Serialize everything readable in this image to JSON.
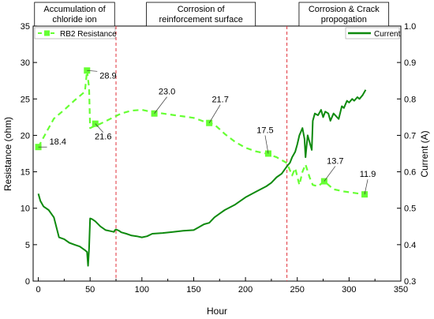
{
  "chart_data": {
    "type": "line",
    "title": "",
    "xlabel": "Hour",
    "ylabel_left": "Resistance (ohm)",
    "ylabel_right": "Current (A)",
    "xlim": [
      -5,
      350
    ],
    "ylim_left": [
      0,
      35
    ],
    "ylim_right": [
      0.3,
      1.0
    ],
    "x_ticks": [
      0,
      50,
      100,
      150,
      200,
      250,
      300,
      350
    ],
    "y_left_ticks": [
      0,
      5,
      10,
      15,
      20,
      25,
      30,
      35
    ],
    "y_right_ticks": [
      0.3,
      0.4,
      0.5,
      0.6,
      0.7,
      0.8,
      0.9,
      1.0
    ],
    "grid": false,
    "phase_boundaries": [
      75,
      240
    ],
    "phases": [
      {
        "label_lines": [
          "Accumulation of",
          "chloride ion"
        ],
        "x_center": 35
      },
      {
        "label_lines": [
          "Corrosion of",
          "reinforcement surface"
        ],
        "x_center": 157
      },
      {
        "label_lines": [
          "Corrosion & Crack",
          "propogation"
        ],
        "x_center": 295
      }
    ],
    "series": [
      {
        "name": "RB2 Resistance",
        "axis": "left",
        "color": "#66ff33",
        "style": "dashed",
        "marker": "square",
        "x": [
          0,
          8,
          15,
          25,
          35,
          45,
          47,
          49,
          50,
          53,
          60,
          70,
          80,
          90,
          100,
          110,
          120,
          130,
          140,
          150,
          160,
          170,
          180,
          190,
          200,
          210,
          220,
          230,
          240,
          245,
          248,
          252,
          255,
          258,
          262,
          265,
          270,
          276,
          285,
          295,
          305,
          315
        ],
        "y": [
          18.4,
          20.5,
          22.3,
          23.5,
          24.8,
          26.0,
          28.9,
          26.5,
          21.0,
          21.2,
          21.6,
          22.3,
          23.0,
          23.4,
          23.5,
          23.2,
          23.0,
          22.8,
          22.6,
          22.4,
          21.9,
          21.5,
          20.2,
          19.1,
          18.3,
          17.8,
          17.5,
          17.0,
          16.2,
          14.5,
          15.5,
          13.2,
          15.0,
          16.0,
          14.2,
          13.2,
          13.0,
          13.7,
          12.6,
          12.3,
          12.1,
          11.9
        ],
        "marker_points": [
          {
            "x": 0,
            "y": 18.4
          },
          {
            "x": 47,
            "y": 28.9
          },
          {
            "x": 55,
            "y": 21.6
          },
          {
            "x": 112,
            "y": 23.0
          },
          {
            "x": 165,
            "y": 21.7
          },
          {
            "x": 222,
            "y": 17.5
          },
          {
            "x": 276,
            "y": 13.7
          },
          {
            "x": 315,
            "y": 11.9
          }
        ],
        "data_labels": [
          {
            "text": "18.4",
            "x": 0,
            "y": 18.4
          },
          {
            "text": "28.9",
            "x": 47,
            "y": 28.9
          },
          {
            "text": "21.6",
            "x": 55,
            "y": 21.6
          },
          {
            "text": "23.0",
            "x": 112,
            "y": 23.0
          },
          {
            "text": "21.7",
            "x": 165,
            "y": 21.7
          },
          {
            "text": "17.5",
            "x": 222,
            "y": 17.5
          },
          {
            "text": "13.7",
            "x": 276,
            "y": 13.7
          },
          {
            "text": "11.9",
            "x": 315,
            "y": 11.9
          }
        ]
      },
      {
        "name": "Current",
        "axis": "right",
        "color": "#0e8a0e",
        "style": "solid",
        "x": [
          0,
          2,
          5,
          10,
          15,
          20,
          25,
          30,
          35,
          40,
          45,
          47,
          48,
          49,
          50,
          52,
          55,
          60,
          65,
          70,
          73,
          74,
          75,
          78,
          80,
          85,
          90,
          95,
          100,
          105,
          110,
          120,
          130,
          140,
          150,
          155,
          160,
          165,
          170,
          175,
          180,
          190,
          200,
          210,
          220,
          225,
          230,
          235,
          240,
          243,
          245,
          248,
          250,
          252,
          255,
          257,
          258,
          259,
          260,
          262,
          264,
          265,
          267,
          270,
          273,
          275,
          277,
          280,
          282,
          285,
          290,
          293,
          295,
          298,
          300,
          303,
          305,
          308,
          310,
          313,
          316
        ],
        "y": [
          0.54,
          0.52,
          0.505,
          0.495,
          0.475,
          0.42,
          0.415,
          0.405,
          0.4,
          0.395,
          0.385,
          0.38,
          0.342,
          0.39,
          0.472,
          0.47,
          0.464,
          0.45,
          0.44,
          0.437,
          0.435,
          0.44,
          0.442,
          0.438,
          0.434,
          0.43,
          0.425,
          0.423,
          0.42,
          0.423,
          0.43,
          0.432,
          0.435,
          0.438,
          0.44,
          0.448,
          0.456,
          0.46,
          0.475,
          0.485,
          0.495,
          0.51,
          0.53,
          0.545,
          0.56,
          0.57,
          0.585,
          0.595,
          0.615,
          0.625,
          0.64,
          0.655,
          0.675,
          0.7,
          0.72,
          0.69,
          0.64,
          0.67,
          0.7,
          0.68,
          0.66,
          0.74,
          0.76,
          0.755,
          0.77,
          0.75,
          0.765,
          0.76,
          0.74,
          0.76,
          0.745,
          0.78,
          0.775,
          0.795,
          0.79,
          0.8,
          0.795,
          0.805,
          0.8,
          0.81,
          0.825
        ]
      }
    ],
    "legend": {
      "left": {
        "label": "RB2 Resistance",
        "placement": "top-left"
      },
      "right": {
        "label": "Current",
        "placement": "top-right"
      }
    }
  }
}
